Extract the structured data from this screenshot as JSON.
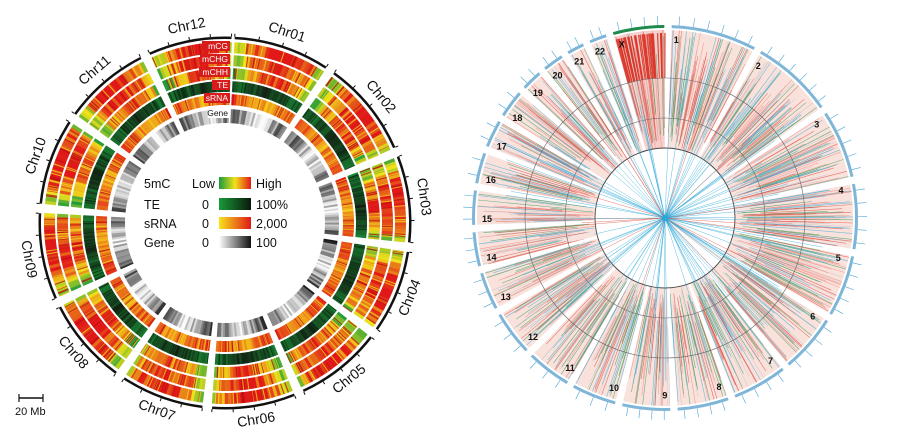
{
  "left_circos": {
    "chromosomes": [
      "Chr01",
      "Chr02",
      "Chr03",
      "Chr04",
      "Chr05",
      "Chr06",
      "Chr07",
      "Chr08",
      "Chr09",
      "Chr10",
      "Chr11",
      "Chr12"
    ],
    "track_labels": [
      "mCG",
      "mCHG",
      "mCHH",
      "TE",
      "sRNA",
      "Gene"
    ],
    "legend": {
      "title_5mc": "5mC",
      "low": "Low",
      "high": "High",
      "rows": [
        {
          "name": "TE",
          "min": "0",
          "max": "100%"
        },
        {
          "name": "sRNA",
          "min": "0",
          "max": "2,000"
        },
        {
          "name": "Gene",
          "min": "0",
          "max": "100"
        }
      ]
    },
    "scale_bar": "20 Mb"
  },
  "right_circos": {
    "chromosome_numbers": [
      "1",
      "2",
      "3",
      "4",
      "5",
      "6",
      "7",
      "8",
      "9",
      "10",
      "11",
      "12",
      "13",
      "14",
      "15",
      "16",
      "17",
      "18",
      "19",
      "20",
      "21",
      "22",
      "X"
    ]
  }
}
